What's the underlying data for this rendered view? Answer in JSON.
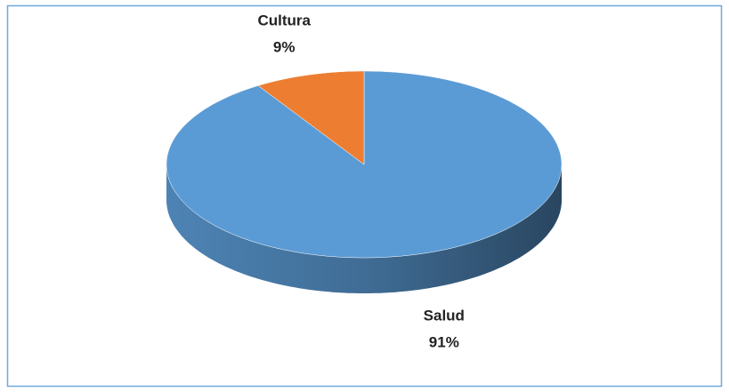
{
  "chart_data": {
    "type": "pie3d",
    "categories": [
      "Salud",
      "Cultura"
    ],
    "values": [
      91,
      9
    ],
    "value_labels": [
      "91%",
      "9%"
    ],
    "colors": [
      "#5b9bd5",
      "#ed7d31"
    ]
  }
}
